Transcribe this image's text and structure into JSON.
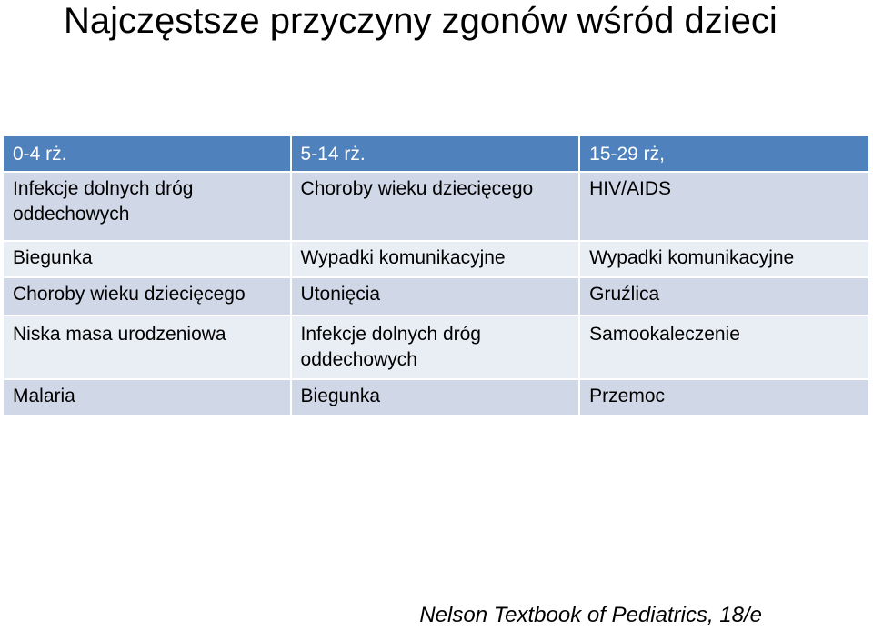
{
  "title": "Najczęstsze przyczyny zgonów wśród dzieci",
  "table": {
    "headers": [
      "0-4 rż.",
      "5-14 rż.",
      "15-29 rż,"
    ],
    "rows": [
      [
        "Infekcje dolnych dróg oddechowych",
        "Choroby wieku dziecięcego",
        "HIV/AIDS"
      ],
      [
        "Biegunka",
        "Wypadki komunikacyjne",
        "Wypadki komunikacyjne"
      ],
      [
        "Choroby wieku dziecięcego",
        "Utonięcia",
        "Gruźlica"
      ],
      [
        "Niska masa urodzeniowa",
        "Infekcje dolnych dróg oddechowych",
        "Samookaleczenie"
      ],
      [
        "Malaria",
        "Biegunka",
        "Przemoc"
      ]
    ]
  },
  "citation": "Nelson Textbook of Pediatrics, 18/e"
}
